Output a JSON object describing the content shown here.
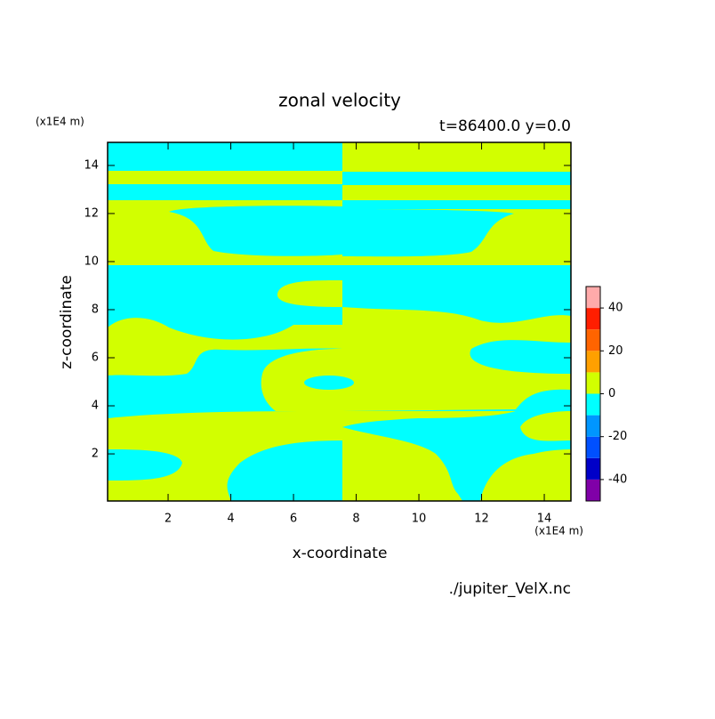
{
  "chart_data": {
    "type": "contour",
    "title": "zonal velocity",
    "subtitle": "t=86400.0 y=0.0",
    "x_label": "x-coordinate",
    "y_label": "z-coordinate",
    "x_unit": "(x1E4 m)",
    "y_unit": "(x1E4 m)",
    "source": "./jupiter_VelX.nc",
    "xlim": [
      0.07,
      14.85
    ],
    "xticks": [
      2,
      4,
      6,
      8,
      10,
      12,
      14
    ],
    "ylim": [
      0.04,
      14.96
    ],
    "yticks": [
      2,
      4,
      6,
      8,
      10,
      12,
      14
    ],
    "levels": [
      -50,
      -40,
      -30,
      -20,
      -10,
      0,
      10,
      20,
      30,
      40,
      50
    ],
    "colors": [
      "#8000a8",
      "#0000c8",
      "#0050ff",
      "#0096ff",
      "#00ffff",
      "#d2ff00",
      "#ffa000",
      "#ff6400",
      "#ff1e00",
      "#ffaaaa"
    ],
    "colorbar_ticks": [
      -40,
      -20,
      0,
      20,
      40
    ]
  }
}
